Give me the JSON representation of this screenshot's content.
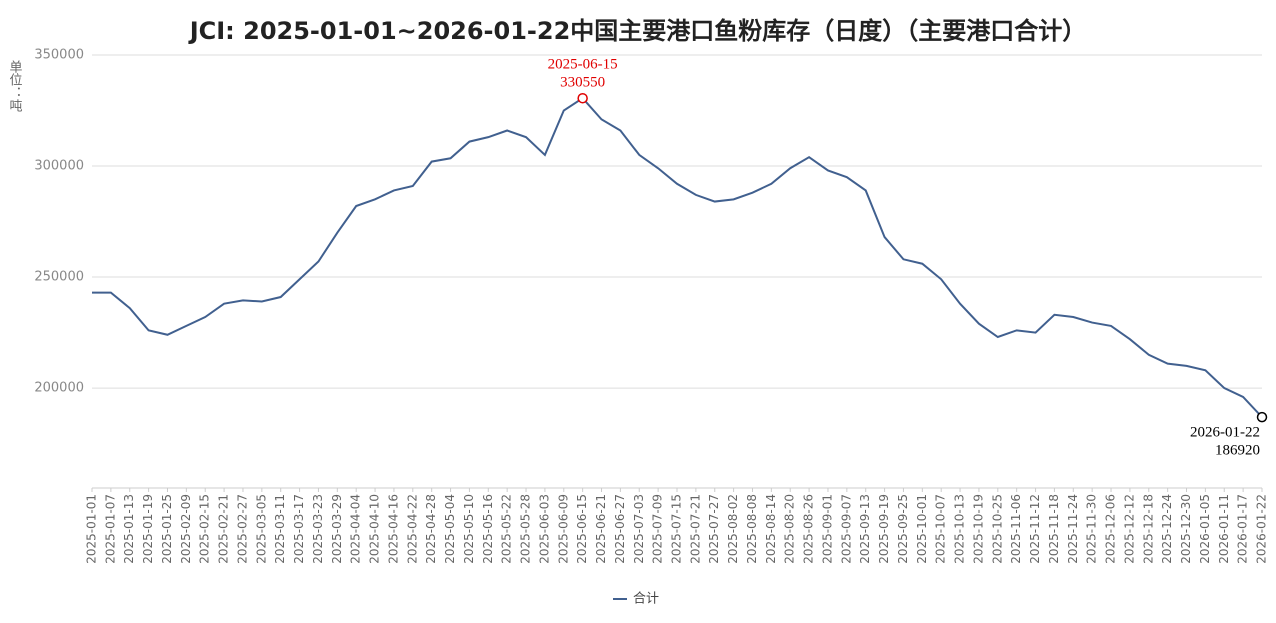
{
  "chart_data": {
    "type": "line",
    "title": "JCI: 2025-01-01~2026-01-22中国主要港口鱼粉库存（日度）（主要港口合计）",
    "y_label": "单位：吨",
    "categories": [
      "2025-01-01",
      "2025-01-07",
      "2025-01-13",
      "2025-01-19",
      "2025-01-25",
      "2025-02-09",
      "2025-02-15",
      "2025-02-21",
      "2025-02-27",
      "2025-03-05",
      "2025-03-11",
      "2025-03-17",
      "2025-03-23",
      "2025-03-29",
      "2025-04-04",
      "2025-04-10",
      "2025-04-16",
      "2025-04-22",
      "2025-04-28",
      "2025-05-04",
      "2025-05-10",
      "2025-05-16",
      "2025-05-22",
      "2025-05-28",
      "2025-06-03",
      "2025-06-09",
      "2025-06-15",
      "2025-06-21",
      "2025-06-27",
      "2025-07-03",
      "2025-07-09",
      "2025-07-15",
      "2025-07-21",
      "2025-07-27",
      "2025-08-02",
      "2025-08-08",
      "2025-08-14",
      "2025-08-20",
      "2025-08-26",
      "2025-09-01",
      "2025-09-07",
      "2025-09-13",
      "2025-09-19",
      "2025-09-25",
      "2025-10-01",
      "2025-10-07",
      "2025-10-13",
      "2025-10-19",
      "2025-10-25",
      "2025-11-06",
      "2025-11-12",
      "2025-11-18",
      "2025-11-24",
      "2025-11-30",
      "2025-12-06",
      "2025-12-12",
      "2025-12-18",
      "2025-12-24",
      "2025-12-30",
      "2026-01-05",
      "2026-01-11",
      "2026-01-17",
      "2026-01-22"
    ],
    "series": [
      {
        "name": "合计",
        "color": "#41608f",
        "values": [
          243000,
          243000,
          236000,
          226000,
          224000,
          228000,
          232000,
          238000,
          239500,
          239000,
          241000,
          249000,
          257000,
          270000,
          282000,
          285000,
          289000,
          291000,
          302000,
          303500,
          311000,
          313000,
          316000,
          313000,
          305000,
          325000,
          330550,
          321000,
          316000,
          305000,
          299000,
          292000,
          287000,
          284000,
          285000,
          288000,
          292000,
          299000,
          304000,
          298000,
          295000,
          289000,
          268000,
          258000,
          256000,
          249000,
          238000,
          229000,
          223000,
          226000,
          225000,
          233000,
          232000,
          229500,
          228000,
          222000,
          215000,
          211000,
          210000,
          208000,
          200000,
          196000,
          186920
        ]
      }
    ],
    "annotations": [
      {
        "index": 26,
        "color": "#e00000",
        "position": "above"
      },
      {
        "index": 62,
        "color": "#000000",
        "position": "below"
      }
    ],
    "ylim": [
      155000,
      350000
    ],
    "yticks": [
      200000,
      250000,
      300000,
      350000
    ],
    "grid": true,
    "legend": "bottom"
  }
}
